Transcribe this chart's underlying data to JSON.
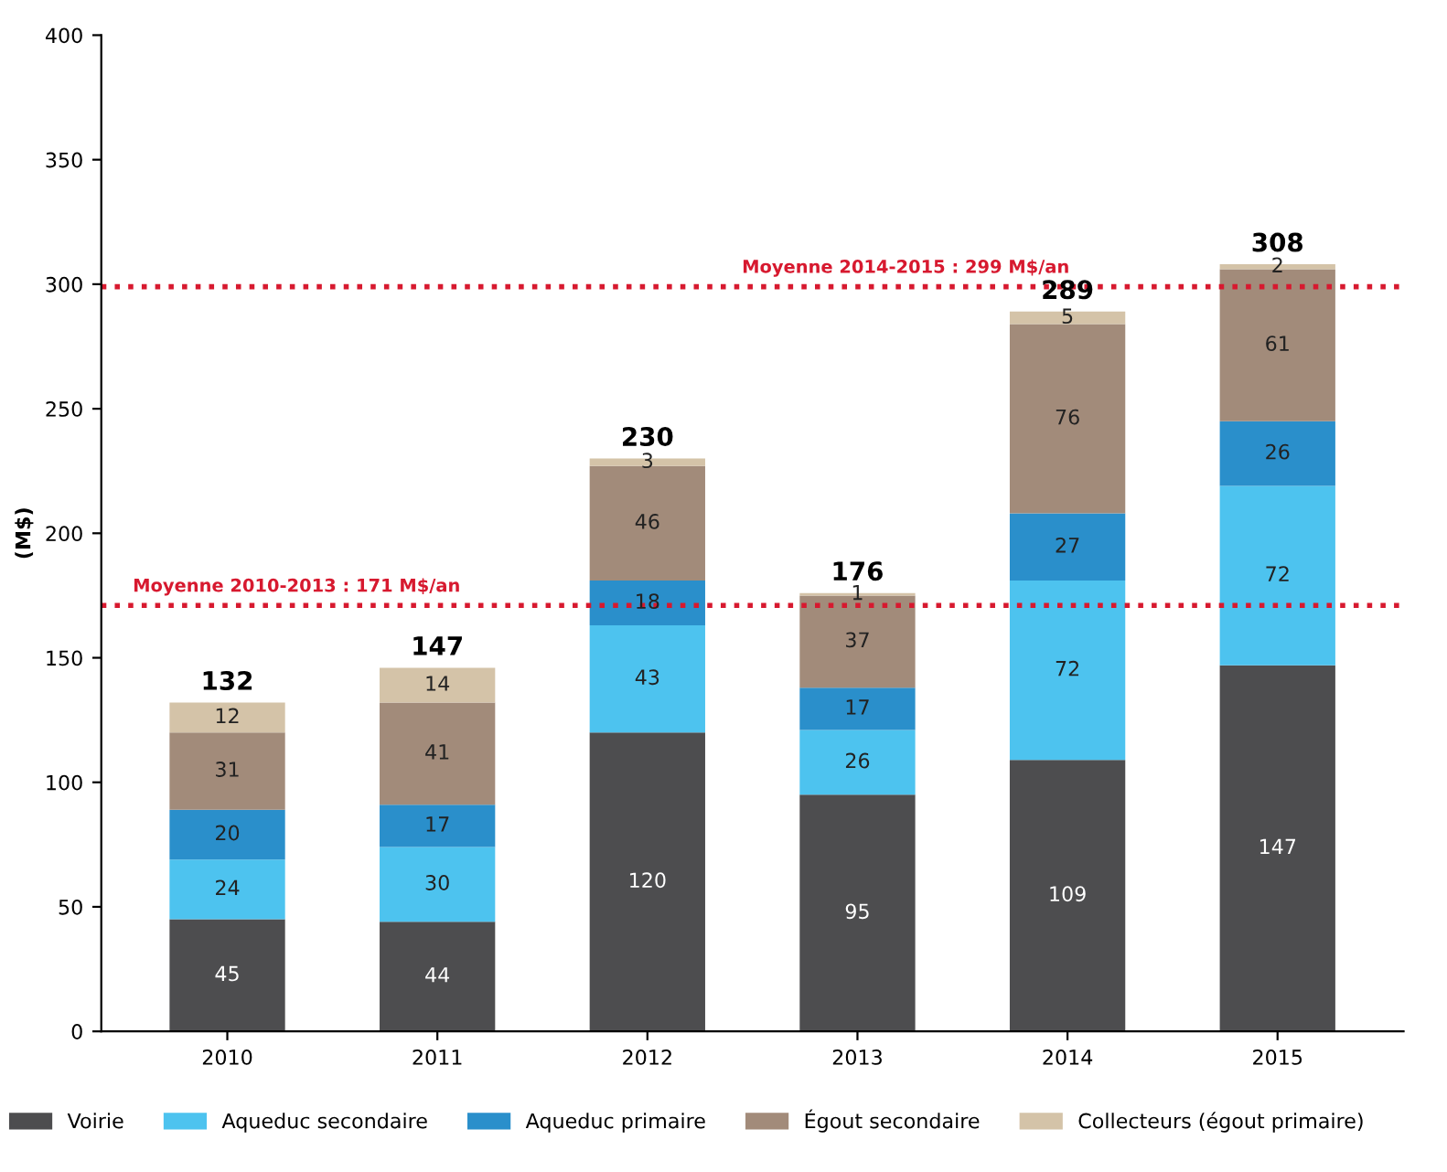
{
  "chart_data": {
    "type": "bar",
    "stacked": true,
    "ylabel": "(M$)",
    "categories": [
      "2010",
      "2011",
      "2012",
      "2013",
      "2014",
      "2015"
    ],
    "series": [
      {
        "name": "Voirie",
        "color": "#4d4d4f",
        "values": [
          45,
          44,
          120,
          95,
          109,
          147
        ]
      },
      {
        "name": "Aqueduc secondaire",
        "color": "#4dc3ef",
        "values": [
          24,
          30,
          43,
          26,
          72,
          72
        ]
      },
      {
        "name": "Aqueduc primaire",
        "color": "#2a8fcb",
        "values": [
          20,
          17,
          18,
          17,
          27,
          26
        ]
      },
      {
        "name": "Égout secondaire",
        "color": "#a28b7a",
        "values": [
          31,
          41,
          46,
          37,
          76,
          61
        ]
      },
      {
        "name": "Collecteurs (égout primaire)",
        "color": "#d4c3a8",
        "values": [
          12,
          14,
          3,
          1,
          5,
          2
        ]
      }
    ],
    "totals": [
      "132",
      "147",
      "230",
      "176",
      "289",
      "308"
    ],
    "data_labels": true,
    "ylim": [
      0,
      400
    ],
    "yticks": [
      0,
      50,
      100,
      150,
      200,
      250,
      300,
      350,
      400
    ],
    "grid": false,
    "legend": "bottom",
    "ref_lines": [
      {
        "axis": "y",
        "value": 171,
        "label": "Moyenne 2010-2013 : 171 M$/an",
        "color": "#d7192f",
        "line_style": "dotted"
      },
      {
        "axis": "y",
        "value": 299,
        "label": "Moyenne 2014-2015 : 299 M$/an",
        "color": "#d7192f",
        "line_style": "dotted"
      }
    ]
  }
}
